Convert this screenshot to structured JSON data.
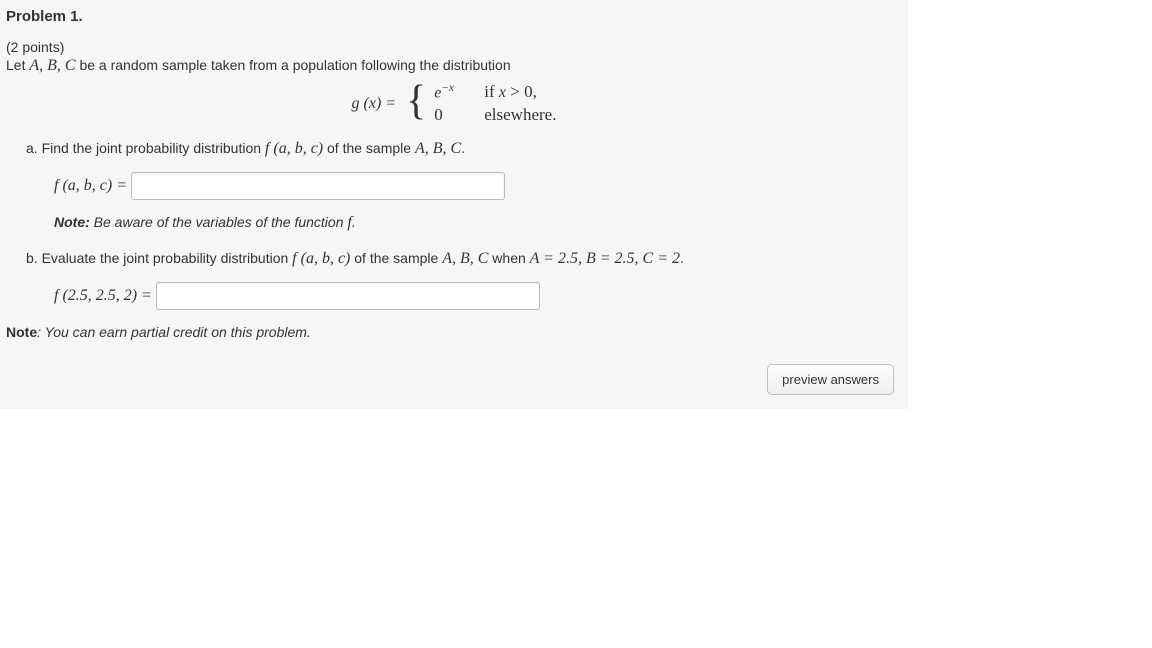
{
  "problem": {
    "title": "Problem 1.",
    "points_text": "(2 points)",
    "intro_prefix": "Let ",
    "intro_vars": "A, B, C",
    "intro_suffix": " be a random sample taken from a population following the distribution",
    "equation": {
      "lhs": "g (x) =",
      "case1_expr": "e",
      "case1_exp": "−x",
      "case1_cond": "if x > 0,",
      "case2_expr": "0",
      "case2_cond": "elsewhere."
    },
    "parts": {
      "a": {
        "prefix": "a. Find the joint probability distribution ",
        "func": "f (a, b, c)",
        "mid": " of the sample ",
        "vars": "A, B, C",
        "suffix": ".",
        "answer_label": "f (a, b, c) ="
      },
      "note_a_bold": "Note:",
      "note_a_rest": " Be aware of the variables of the function ",
      "note_a_func": "f",
      "note_a_period": ".",
      "b": {
        "prefix": "b. Evaluate the joint probability distribution ",
        "func": "f (a, b, c)",
        "mid": " of the sample ",
        "vars": "A, B, C",
        "when_text": " when ",
        "assignments": "A = 2.5,  B = 2.5,  C = 2",
        "suffix": ".",
        "answer_label": "f (2.5, 2.5, 2) ="
      }
    },
    "final_note_bold": "Note",
    "final_note_rest": ": You can earn partial credit on this problem.",
    "preview_button": "preview answers"
  },
  "colors": {
    "panel_bg": "#f6f6f6",
    "text": "#333333",
    "input_border": "#bbbbbb",
    "button_border": "#bfbfbf"
  }
}
